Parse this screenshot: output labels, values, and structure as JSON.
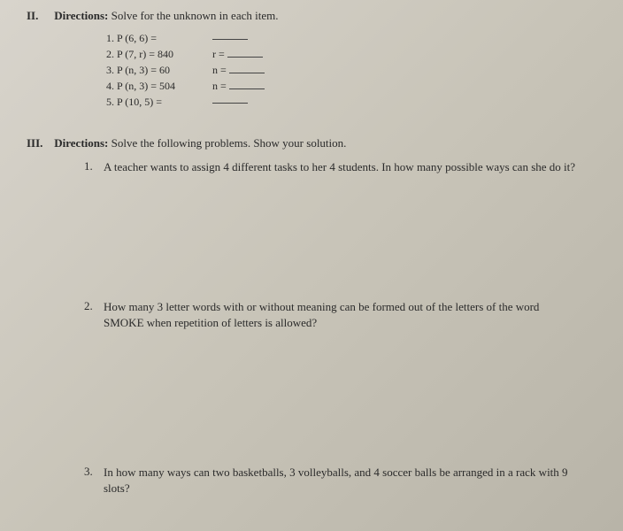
{
  "section2": {
    "num": "II.",
    "label": "Directions:",
    "text": " Solve for the unknown in each item.",
    "items": [
      {
        "eq": "1. P (6, 6) =",
        "var": ""
      },
      {
        "eq": "2. P (7, r) = 840",
        "var": "r ="
      },
      {
        "eq": "3. P (n, 3) = 60",
        "var": "n ="
      },
      {
        "eq": "4. P (n, 3) = 504",
        "var": "n ="
      },
      {
        "eq": "5. P (10, 5) =",
        "var": ""
      }
    ]
  },
  "section3": {
    "num": "III.",
    "label": "Directions:",
    "text": " Solve the following problems. Show your solution.",
    "problems": [
      {
        "num": "1.",
        "text": "A teacher wants to assign 4 different tasks to her 4 students. In how many possible ways can she do it?"
      },
      {
        "num": "2.",
        "text": "How many 3 letter words with or without meaning can be formed out of the letters of the word SMOKE when repetition of letters is allowed?"
      },
      {
        "num": "3.",
        "text": "In how many ways can two basketballs, 3 volleyballs, and 4 soccer balls be arranged in a rack with 9 slots?"
      }
    ]
  }
}
